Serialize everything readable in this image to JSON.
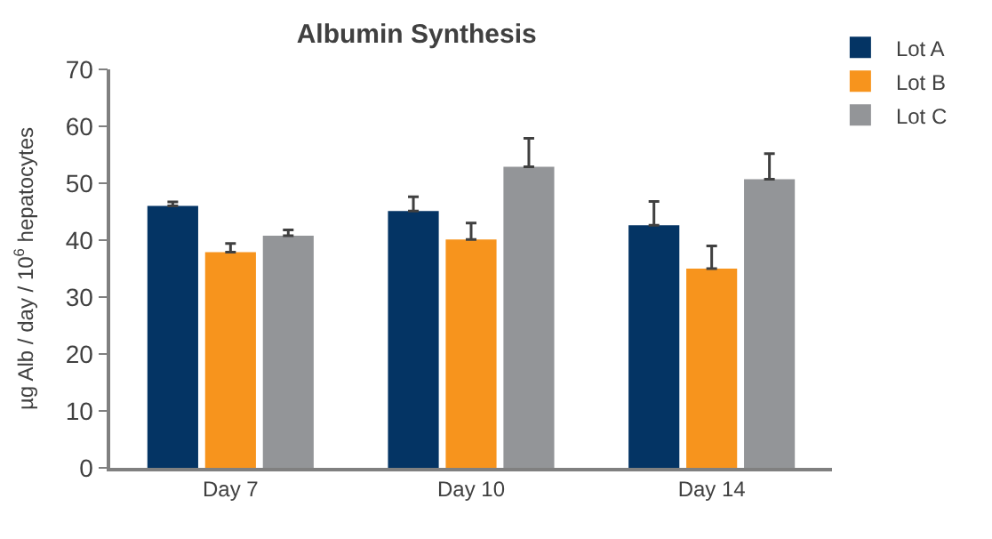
{
  "chart_data": {
    "type": "bar",
    "title": "Albumin Synthesis",
    "ylabel": "µg Alb / day / 10$^{6}$ hepatocytes",
    "categories": [
      "Day 7",
      "Day 10",
      "Day 14"
    ],
    "series": [
      {
        "name": "Lot A",
        "color": "#043464",
        "values": [
          46.0,
          45.1,
          42.6
        ],
        "errors": [
          0.7,
          2.5,
          4.2
        ]
      },
      {
        "name": "Lot B",
        "color": "#f7941d",
        "values": [
          37.9,
          40.1,
          35.0
        ],
        "errors": [
          1.5,
          2.9,
          4.0
        ]
      },
      {
        "name": "Lot C",
        "color": "#939598",
        "values": [
          40.8,
          52.9,
          50.7
        ],
        "errors": [
          1.0,
          5.0,
          4.5
        ]
      }
    ],
    "ylim": [
      0,
      70
    ],
    "yticks": [
      0,
      10,
      20,
      30,
      40,
      50,
      60,
      70
    ],
    "legend": "top right"
  }
}
